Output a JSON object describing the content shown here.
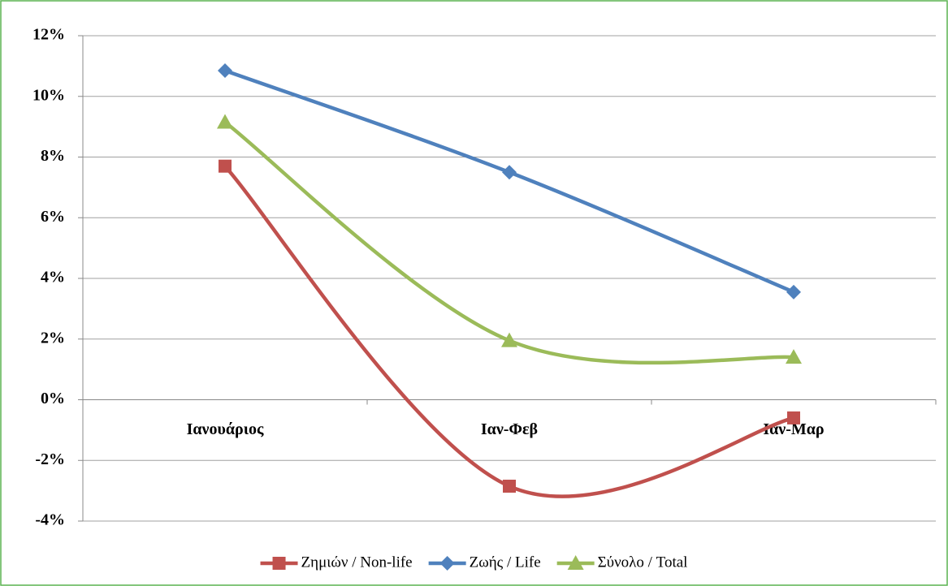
{
  "chart_data": {
    "type": "line",
    "smooth": true,
    "categories": [
      "Ιανουάριος",
      "Ιαν-Φεβ",
      "Ιαν-Μαρ"
    ],
    "series": [
      {
        "name": "Ζημιών / Non-life",
        "color": "#c0504d",
        "marker": "square",
        "values": [
          7.7,
          -2.85,
          -0.6
        ]
      },
      {
        "name": "Ζωής / Life",
        "color": "#4f81bd",
        "marker": "diamond",
        "values": [
          10.85,
          7.5,
          3.55
        ]
      },
      {
        "name": "Σύνολο / Total",
        "color": "#9bbb59",
        "marker": "triangle",
        "values": [
          9.15,
          1.95,
          1.4
        ]
      }
    ],
    "ylim": [
      -4,
      12
    ],
    "yticks": [
      {
        "value": -4,
        "label": "-4%"
      },
      {
        "value": -2,
        "label": "-2%"
      },
      {
        "value": 0,
        "label": "0%"
      },
      {
        "value": 2,
        "label": "2%"
      },
      {
        "value": 4,
        "label": "4%"
      },
      {
        "value": 6,
        "label": "6%"
      },
      {
        "value": 8,
        "label": "8%"
      },
      {
        "value": 10,
        "label": "10%"
      },
      {
        "value": 12,
        "label": "12%"
      }
    ],
    "grid": true,
    "legend": "bottom"
  }
}
